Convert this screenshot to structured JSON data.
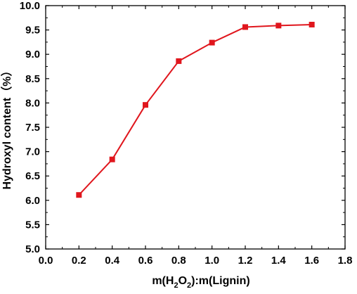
{
  "chart_data": {
    "type": "line",
    "title": "",
    "xlabel": {
      "prefix": "m(H",
      "sub1": "2",
      "mid": "O",
      "sub2": "2",
      "suffix": "):m(Lignin)"
    },
    "ylabel": "Hydroxyl content（%）",
    "xlim": [
      0.0,
      1.8
    ],
    "ylim": [
      5.0,
      10.0
    ],
    "x_ticks": [
      "0.0",
      "0.2",
      "0.4",
      "0.6",
      "0.8",
      "1.0",
      "1.2",
      "1.4",
      "1.6",
      "1.8"
    ],
    "y_ticks": [
      "5.0",
      "5.5",
      "6.0",
      "6.5",
      "7.0",
      "7.5",
      "8.0",
      "8.5",
      "9.0",
      "9.5",
      "10.0"
    ],
    "grid": false,
    "series": [
      {
        "color": "#e0161d",
        "marker": "square",
        "x": [
          0.2,
          0.4,
          0.6,
          0.8,
          1.0,
          1.2,
          1.4,
          1.6
        ],
        "y": [
          6.11,
          6.84,
          7.96,
          8.86,
          9.24,
          9.56,
          9.59,
          9.61
        ]
      }
    ]
  }
}
